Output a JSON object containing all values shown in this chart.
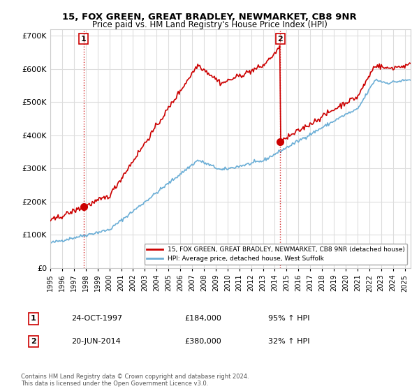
{
  "title": "15, FOX GREEN, GREAT BRADLEY, NEWMARKET, CB8 9NR",
  "subtitle": "Price paid vs. HM Land Registry's House Price Index (HPI)",
  "ylim": [
    0,
    720000
  ],
  "yticks": [
    0,
    100000,
    200000,
    300000,
    400000,
    500000,
    600000,
    700000
  ],
  "ytick_labels": [
    "£0",
    "£100K",
    "£200K",
    "£300K",
    "£400K",
    "£500K",
    "£600K",
    "£700K"
  ],
  "sale1_date_num": 1997.81,
  "sale1_price": 184000,
  "sale1_label": "1",
  "sale1_date_str": "24-OCT-1997",
  "sale1_price_str": "£184,000",
  "sale1_hpi_str": "95% ↑ HPI",
  "sale2_date_num": 2014.47,
  "sale2_price": 380000,
  "sale2_label": "2",
  "sale2_date_str": "20-JUN-2014",
  "sale2_price_str": "£380,000",
  "sale2_hpi_str": "32% ↑ HPI",
  "hpi_color": "#6baed6",
  "price_color": "#cc0000",
  "marker_color": "#cc0000",
  "sale_line_color": "#cc0000",
  "legend_label1": "15, FOX GREEN, GREAT BRADLEY, NEWMARKET, CB8 9NR (detached house)",
  "legend_label2": "HPI: Average price, detached house, West Suffolk",
  "footer1": "Contains HM Land Registry data © Crown copyright and database right 2024.",
  "footer2": "This data is licensed under the Open Government Licence v3.0.",
  "bg_color": "#ffffff",
  "grid_color": "#dddddd",
  "xmin": 1995.0,
  "xmax": 2025.5
}
